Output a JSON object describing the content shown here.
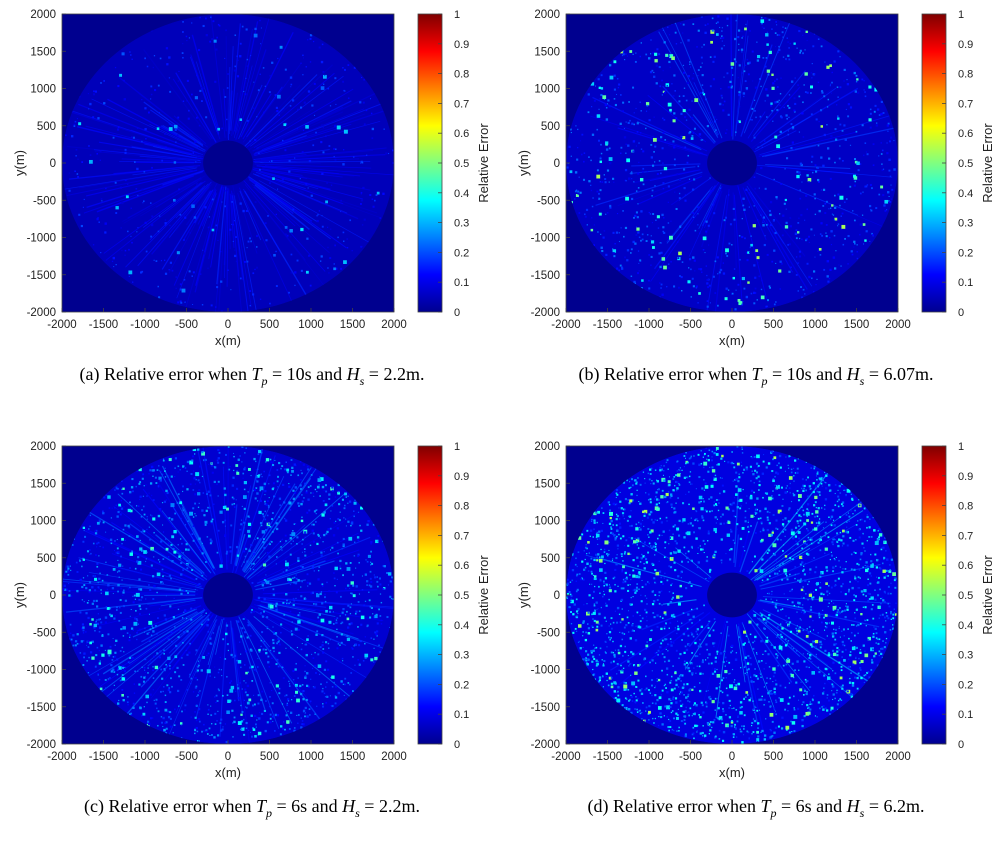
{
  "colors": {
    "background": "#00008f",
    "colormap": "jet",
    "colormap_stops": [
      "#00008f",
      "#0000ff",
      "#0080ff",
      "#00ffff",
      "#80ff80",
      "#ffff00",
      "#ff8000",
      "#ff0000",
      "#800000"
    ]
  },
  "chart_data": [
    {
      "type": "heatmap",
      "panel_label": "(a)",
      "caption_text": "Relative error when",
      "tp_symbol": "T",
      "tp_sub": "p",
      "tp_value": "= 10s and",
      "hs_symbol": "H",
      "hs_sub": "s",
      "hs_value": "= 2.2m.",
      "xlabel": "x(m)",
      "ylabel": "y(m)",
      "colorbar_label": "Relative Error",
      "xlim": [
        -2000,
        2000
      ],
      "ylim": [
        -2000,
        2000
      ],
      "clim": [
        0,
        1
      ],
      "x_ticks": [
        "-2000",
        "-1500",
        "-1000",
        "-500",
        "0",
        "500",
        "1000",
        "1500",
        "2000"
      ],
      "y_ticks": [
        "2000",
        "1500",
        "1000",
        "500",
        "0",
        "-500",
        "-1000",
        "-1500",
        "-2000"
      ],
      "colorbar_ticks": [
        "1",
        "0.9",
        "0.8",
        "0.7",
        "0.6",
        "0.5",
        "0.4",
        "0.3",
        "0.2",
        "0.1",
        "0"
      ],
      "domain_outer_radius": 2000,
      "domain_inner_radius": 300,
      "typical_error": 0.08,
      "max_error": 0.35,
      "hotspot_density": 0.2,
      "radial_streaks": 0.9
    },
    {
      "type": "heatmap",
      "panel_label": "(b)",
      "caption_text": "Relative error when",
      "tp_symbol": "T",
      "tp_sub": "p",
      "tp_value": "= 10s and",
      "hs_symbol": "H",
      "hs_sub": "s",
      "hs_value": "= 6.07m.",
      "xlabel": "x(m)",
      "ylabel": "y(m)",
      "colorbar_label": "Relative Error",
      "xlim": [
        -2000,
        2000
      ],
      "ylim": [
        -2000,
        2000
      ],
      "clim": [
        0,
        1
      ],
      "x_ticks": [
        "-2000",
        "-1500",
        "-1000",
        "-500",
        "0",
        "500",
        "1000",
        "1500",
        "2000"
      ],
      "y_ticks": [
        "2000",
        "1500",
        "1000",
        "500",
        "0",
        "-500",
        "-1000",
        "-1500",
        "-2000"
      ],
      "colorbar_ticks": [
        "1",
        "0.9",
        "0.8",
        "0.7",
        "0.6",
        "0.5",
        "0.4",
        "0.3",
        "0.2",
        "0.1",
        "0"
      ],
      "domain_outer_radius": 2000,
      "domain_inner_radius": 300,
      "typical_error": 0.1,
      "max_error": 0.55,
      "hotspot_density": 0.45,
      "radial_streaks": 0.3
    },
    {
      "type": "heatmap",
      "panel_label": "(c)",
      "caption_text": "Relative error when",
      "tp_symbol": "T",
      "tp_sub": "p",
      "tp_value": "= 6s and",
      "hs_symbol": "H",
      "hs_sub": "s",
      "hs_value": "= 2.2m.",
      "xlabel": "x(m)",
      "ylabel": "y(m)",
      "colorbar_label": "Relative Error",
      "xlim": [
        -2000,
        2000
      ],
      "ylim": [
        -2000,
        2000
      ],
      "clim": [
        0,
        1
      ],
      "x_ticks": [
        "-2000",
        "-1500",
        "-1000",
        "-500",
        "0",
        "500",
        "1000",
        "1500",
        "2000"
      ],
      "y_ticks": [
        "2000",
        "1500",
        "1000",
        "500",
        "0",
        "-500",
        "-1000",
        "-1500",
        "-2000"
      ],
      "colorbar_ticks": [
        "1",
        "0.9",
        "0.8",
        "0.7",
        "0.6",
        "0.5",
        "0.4",
        "0.3",
        "0.2",
        "0.1",
        "0"
      ],
      "domain_outer_radius": 2000,
      "domain_inner_radius": 300,
      "typical_error": 0.12,
      "max_error": 0.45,
      "hotspot_density": 0.7,
      "radial_streaks": 0.6
    },
    {
      "type": "heatmap",
      "panel_label": "(d)",
      "caption_text": "Relative error when",
      "tp_symbol": "T",
      "tp_sub": "p",
      "tp_value": "= 6s and",
      "hs_symbol": "H",
      "hs_sub": "s",
      "hs_value": "= 6.2m.",
      "xlabel": "x(m)",
      "ylabel": "y(m)",
      "colorbar_label": "Relative Error",
      "xlim": [
        -2000,
        2000
      ],
      "ylim": [
        -2000,
        2000
      ],
      "clim": [
        0,
        1
      ],
      "x_ticks": [
        "-2000",
        "-1500",
        "-1000",
        "-500",
        "0",
        "500",
        "1000",
        "1500",
        "2000"
      ],
      "y_ticks": [
        "2000",
        "1500",
        "1000",
        "500",
        "0",
        "-500",
        "-1000",
        "-1500",
        "-2000"
      ],
      "colorbar_ticks": [
        "1",
        "0.9",
        "0.8",
        "0.7",
        "0.6",
        "0.5",
        "0.4",
        "0.3",
        "0.2",
        "0.1",
        "0"
      ],
      "domain_outer_radius": 2000,
      "domain_inner_radius": 300,
      "typical_error": 0.15,
      "max_error": 0.55,
      "hotspot_density": 1.0,
      "radial_streaks": 0.2
    }
  ]
}
